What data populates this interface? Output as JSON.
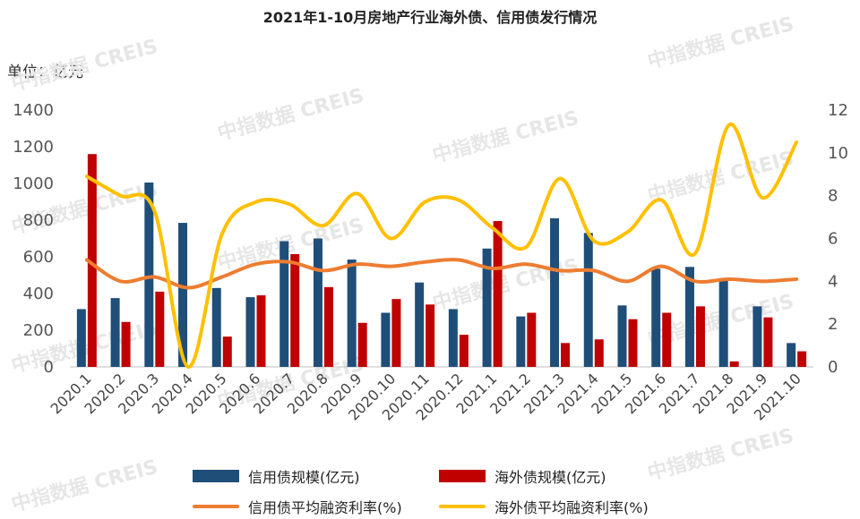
{
  "title": "2021年1-10月房地产行业海外债、信用债发行情况",
  "unit_label": "单位：亿元",
  "watermark": "中指数据 CREIS",
  "chart_data": {
    "type": "bar",
    "categories": [
      "2020.1",
      "2020.2",
      "2020.3",
      "2020.4",
      "2020.5",
      "2020.6",
      "2020.7",
      "2020.8",
      "2020.9",
      "2020.10",
      "2020.11",
      "2020.12",
      "2021.1",
      "2021.2",
      "2021.3",
      "2021.4",
      "2021.5",
      "2021.6",
      "2021.7",
      "2021.8",
      "2021.9",
      "2021.10"
    ],
    "y_left": {
      "ylim": [
        0,
        1400
      ],
      "ticks": [
        "0",
        "200",
        "400",
        "600",
        "800",
        "1000",
        "1200",
        "1400"
      ]
    },
    "y_right": {
      "ylim": [
        0,
        12
      ],
      "ticks": [
        "0",
        "2",
        "4",
        "6",
        "8",
        "10",
        "12"
      ]
    },
    "series": [
      {
        "name": "信用债规模(亿元)",
        "type": "bar",
        "axis": "left",
        "color": "#1f4e79",
        "values": [
          315,
          375,
          1005,
          785,
          430,
          380,
          685,
          700,
          585,
          295,
          460,
          315,
          645,
          275,
          810,
          730,
          335,
          535,
          545,
          470,
          330,
          130
        ]
      },
      {
        "name": "海外债规模(亿元)",
        "type": "bar",
        "axis": "left",
        "color": "#c00000",
        "values": [
          1160,
          245,
          410,
          0,
          165,
          390,
          615,
          435,
          240,
          370,
          340,
          175,
          795,
          295,
          130,
          150,
          260,
          295,
          330,
          30,
          270,
          85
        ]
      },
      {
        "name": "信用债平均融资利率(%)",
        "type": "line",
        "axis": "right",
        "color": "#ed7d31",
        "values": [
          5.0,
          4.0,
          4.2,
          3.7,
          4.2,
          4.8,
          4.9,
          4.5,
          4.8,
          4.7,
          4.9,
          5.0,
          4.6,
          4.8,
          4.5,
          4.5,
          4.0,
          4.7,
          4.0,
          4.1,
          4.0,
          4.1
        ]
      },
      {
        "name": "海外债平均融资利率(%)",
        "type": "line",
        "axis": "right",
        "color": "#ffc000",
        "values": [
          8.9,
          8.0,
          7.3,
          0.0,
          6.2,
          7.7,
          7.6,
          6.6,
          8.1,
          6.0,
          7.7,
          7.8,
          6.5,
          5.6,
          8.8,
          5.9,
          6.3,
          7.8,
          5.3,
          11.3,
          7.9,
          10.5
        ]
      }
    ],
    "grid": false,
    "legend": "bottom"
  }
}
